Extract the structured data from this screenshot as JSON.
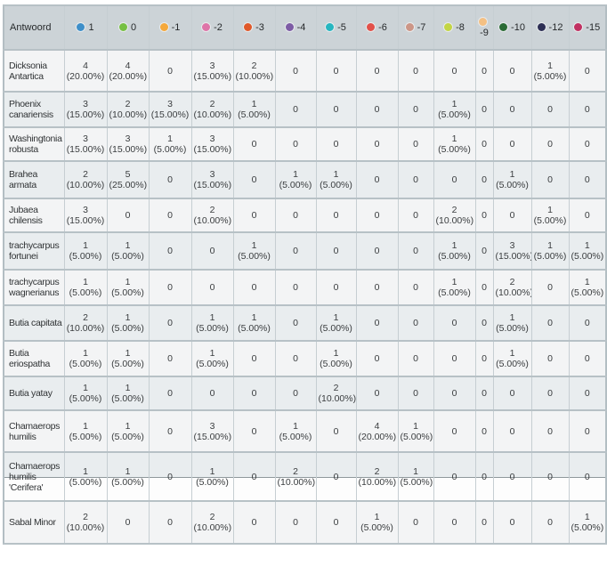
{
  "table": {
    "header": {
      "label": "Antwoord",
      "columns": [
        {
          "label": "1",
          "color": "#3e8fc9",
          "icon": "dot-blue"
        },
        {
          "label": "0",
          "color": "#76c043",
          "icon": "dot-green"
        },
        {
          "label": "-1",
          "color": "#f5a83a",
          "icon": "dot-orange"
        },
        {
          "label": "-2",
          "color": "#de74a8",
          "icon": "dot-pink"
        },
        {
          "label": "-3",
          "color": "#e0592a",
          "icon": "dot-vermilion"
        },
        {
          "label": "-4",
          "color": "#7d5ca5",
          "icon": "dot-purple"
        },
        {
          "label": "-5",
          "color": "#27b6c0",
          "icon": "dot-teal"
        },
        {
          "label": "-6",
          "color": "#e2514a",
          "icon": "dot-red"
        },
        {
          "label": "-7",
          "color": "#cc9687",
          "icon": "dot-tan"
        },
        {
          "label": "-8",
          "color": "#c3d545",
          "icon": "dot-yellowgreen"
        },
        {
          "label": "-9",
          "color": "#f4c083",
          "icon": "dot-peach"
        },
        {
          "label": "-10",
          "color": "#2a6b35",
          "icon": "dot-darkgreen"
        },
        {
          "label": "-12",
          "color": "#2d2f55",
          "icon": "dot-navy"
        },
        {
          "label": "-15",
          "color": "#c13162",
          "icon": "dot-crimson"
        }
      ]
    },
    "rows": [
      {
        "name": "Dicksonia Antartica",
        "values": [
          "4 (20.00%)",
          "4 (20.00%)",
          "0",
          "3 (15.00%)",
          "2 (10.00%)",
          "0",
          "0",
          "0",
          "0",
          "0",
          "0",
          "0",
          "1 (5.00%)",
          "0"
        ]
      },
      {
        "name": "Phoenix canariensis",
        "values": [
          "3 (15.00%)",
          "2 (10.00%)",
          "3 (15.00%)",
          "2 (10.00%)",
          "1 (5.00%)",
          "0",
          "0",
          "0",
          "0",
          "1 (5.00%)",
          "0",
          "0",
          "0",
          "0"
        ]
      },
      {
        "name": "Washingtonia robusta",
        "values": [
          "3 (15.00%)",
          "3 (15.00%)",
          "1 (5.00%)",
          "3 (15.00%)",
          "0",
          "0",
          "0",
          "0",
          "0",
          "1 (5.00%)",
          "0",
          "0",
          "0",
          "0"
        ]
      },
      {
        "name": "Brahea armata",
        "values": [
          "2 (10.00%)",
          "5 (25.00%)",
          "0",
          "3 (15.00%)",
          "0",
          "1 (5.00%)",
          "1 (5.00%)",
          "0",
          "0",
          "0",
          "0",
          "1 (5.00%)",
          "0",
          "0"
        ]
      },
      {
        "name": "Jubaea chilensis",
        "values": [
          "3 (15.00%)",
          "0",
          "0",
          "2 (10.00%)",
          "0",
          "0",
          "0",
          "0",
          "0",
          "2 (10.00%)",
          "0",
          "0",
          "1 (5.00%)",
          "0"
        ]
      },
      {
        "name": "trachycarpus fortunei",
        "values": [
          "1 (5.00%)",
          "1 (5.00%)",
          "0",
          "0",
          "1 (5.00%)",
          "0",
          "0",
          "0",
          "0",
          "1 (5.00%)",
          "0",
          "3 (15.00%)",
          "1 (5.00%)",
          "1 (5.00%)"
        ]
      },
      {
        "name": "trachycarpus wagnerianus",
        "values": [
          "1 (5.00%)",
          "1 (5.00%)",
          "0",
          "0",
          "0",
          "0",
          "0",
          "0",
          "0",
          "1 (5.00%)",
          "0",
          "2 (10.00%)",
          "0",
          "1 (5.00%)"
        ]
      },
      {
        "name": "Butia capitata",
        "values": [
          "2 (10.00%)",
          "1 (5.00%)",
          "0",
          "1 (5.00%)",
          "1 (5.00%)",
          "0",
          "1 (5.00%)",
          "0",
          "0",
          "0",
          "0",
          "1 (5.00%)",
          "0",
          "0"
        ]
      },
      {
        "name": "Butia eriospatha",
        "values": [
          "1 (5.00%)",
          "1 (5.00%)",
          "0",
          "1 (5.00%)",
          "0",
          "0",
          "1 (5.00%)",
          "0",
          "0",
          "0",
          "0",
          "1 (5.00%)",
          "0",
          "0"
        ]
      },
      {
        "name": "Butia yatay",
        "values": [
          "1 (5.00%)",
          "1 (5.00%)",
          "0",
          "0",
          "0",
          "0",
          "2 (10.00%)",
          "0",
          "0",
          "0",
          "0",
          "0",
          "0",
          "0"
        ]
      },
      {
        "name": "Chamaerops humilis",
        "values": [
          "1 (5.00%)",
          "1 (5.00%)",
          "0",
          "3 (15.00%)",
          "0",
          "1 (5.00%)",
          "0",
          "4 (20.00%)",
          "1 (5.00%)",
          "0",
          "0",
          "0",
          "0",
          "0"
        ]
      },
      {
        "name": "Chamaerops humilis 'Cerifera'",
        "values": [
          "1 (5.00%)",
          "1 (5.00%)",
          "0",
          "1 (5.00%)",
          "0",
          "2 (10.00%)",
          "0",
          "2 (10.00%)",
          "1 (5.00%)",
          "0",
          "0",
          "0",
          "0",
          "0"
        ]
      },
      {
        "name": "Sabal Minor",
        "values": [
          "2 (10.00%)",
          "0",
          "0",
          "2 (10.00%)",
          "0",
          "0",
          "0",
          "1 (5.00%)",
          "0",
          "0",
          "0",
          "0",
          "0",
          "1 (5.00%)"
        ]
      }
    ]
  }
}
